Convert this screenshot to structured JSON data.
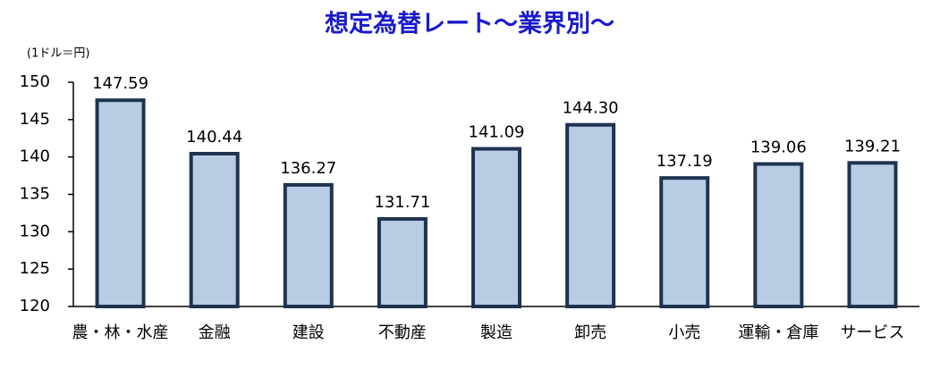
{
  "chart_data": {
    "type": "bar",
    "title": "想定為替レート～業界別～",
    "y_unit_label": "(1ドル＝円)",
    "categories": [
      "農・林・水産",
      "金融",
      "建設",
      "不動産",
      "製造",
      "卸売",
      "小売",
      "運輸・倉庫",
      "サービス"
    ],
    "values": [
      147.59,
      140.44,
      136.27,
      131.71,
      141.09,
      144.3,
      137.19,
      139.06,
      139.21
    ],
    "value_labels": [
      "147.59",
      "140.44",
      "136.27",
      "131.71",
      "141.09",
      "144.30",
      "137.19",
      "139.06",
      "139.21"
    ],
    "color": "#b8cce4",
    "edge_color": "#1f3350",
    "ylim": [
      120,
      150
    ],
    "yticks": [
      120,
      125,
      130,
      135,
      140,
      145,
      150
    ],
    "grid": false
  }
}
